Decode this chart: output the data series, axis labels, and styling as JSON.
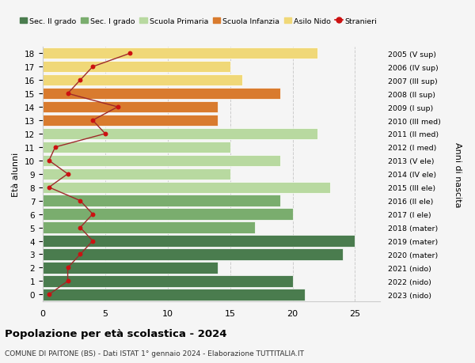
{
  "ages": [
    18,
    17,
    16,
    15,
    14,
    13,
    12,
    11,
    10,
    9,
    8,
    7,
    6,
    5,
    4,
    3,
    2,
    1,
    0
  ],
  "right_labels": [
    "2005 (V sup)",
    "2006 (IV sup)",
    "2007 (III sup)",
    "2008 (II sup)",
    "2009 (I sup)",
    "2010 (III med)",
    "2011 (II med)",
    "2012 (I med)",
    "2013 (V ele)",
    "2014 (IV ele)",
    "2015 (III ele)",
    "2016 (II ele)",
    "2017 (I ele)",
    "2018 (mater)",
    "2019 (mater)",
    "2020 (mater)",
    "2021 (nido)",
    "2022 (nido)",
    "2023 (nido)"
  ],
  "bar_values": [
    21,
    20,
    14,
    24,
    25,
    17,
    20,
    19,
    23,
    15,
    19,
    15,
    22,
    14,
    14,
    19,
    16,
    15,
    22
  ],
  "bar_colors": [
    "#4a7c4e",
    "#4a7c4e",
    "#4a7c4e",
    "#4a7c4e",
    "#4a7c4e",
    "#7aad6e",
    "#7aad6e",
    "#7aad6e",
    "#b8d9a0",
    "#b8d9a0",
    "#b8d9a0",
    "#b8d9a0",
    "#b8d9a0",
    "#d97b2e",
    "#d97b2e",
    "#d97b2e",
    "#f0d878",
    "#f0d878",
    "#f0d878"
  ],
  "stranieri_values": [
    0.5,
    2,
    2,
    3,
    4,
    3,
    4,
    3,
    0.5,
    2,
    0.5,
    1,
    5,
    4,
    6,
    2,
    3,
    4,
    7
  ],
  "title": "Popolazione per età scolastica - 2024",
  "subtitle": "COMUNE DI PAITONE (BS) - Dati ISTAT 1° gennaio 2024 - Elaborazione TUTTITALIA.IT",
  "ylabel_left": "Età alunni",
  "ylabel_right": "Anni di nascita",
  "xlim": [
    0,
    27
  ],
  "xticks": [
    0,
    5,
    10,
    15,
    20,
    25
  ],
  "legend_items": [
    {
      "label": "Sec. II grado",
      "color": "#4a7c4e",
      "type": "patch"
    },
    {
      "label": "Sec. I grado",
      "color": "#7aad6e",
      "type": "patch"
    },
    {
      "label": "Scuola Primaria",
      "color": "#b8d9a0",
      "type": "patch"
    },
    {
      "label": "Scuola Infanzia",
      "color": "#d97b2e",
      "type": "patch"
    },
    {
      "label": "Asilo Nido",
      "color": "#f0d878",
      "type": "patch"
    },
    {
      "label": "Stranieri",
      "color": "#cc1111",
      "type": "line"
    }
  ],
  "bg_color": "#f5f5f5",
  "bar_height": 0.85,
  "stranieri_line_color": "#9e2a2a",
  "stranieri_dot_color": "#cc1111"
}
